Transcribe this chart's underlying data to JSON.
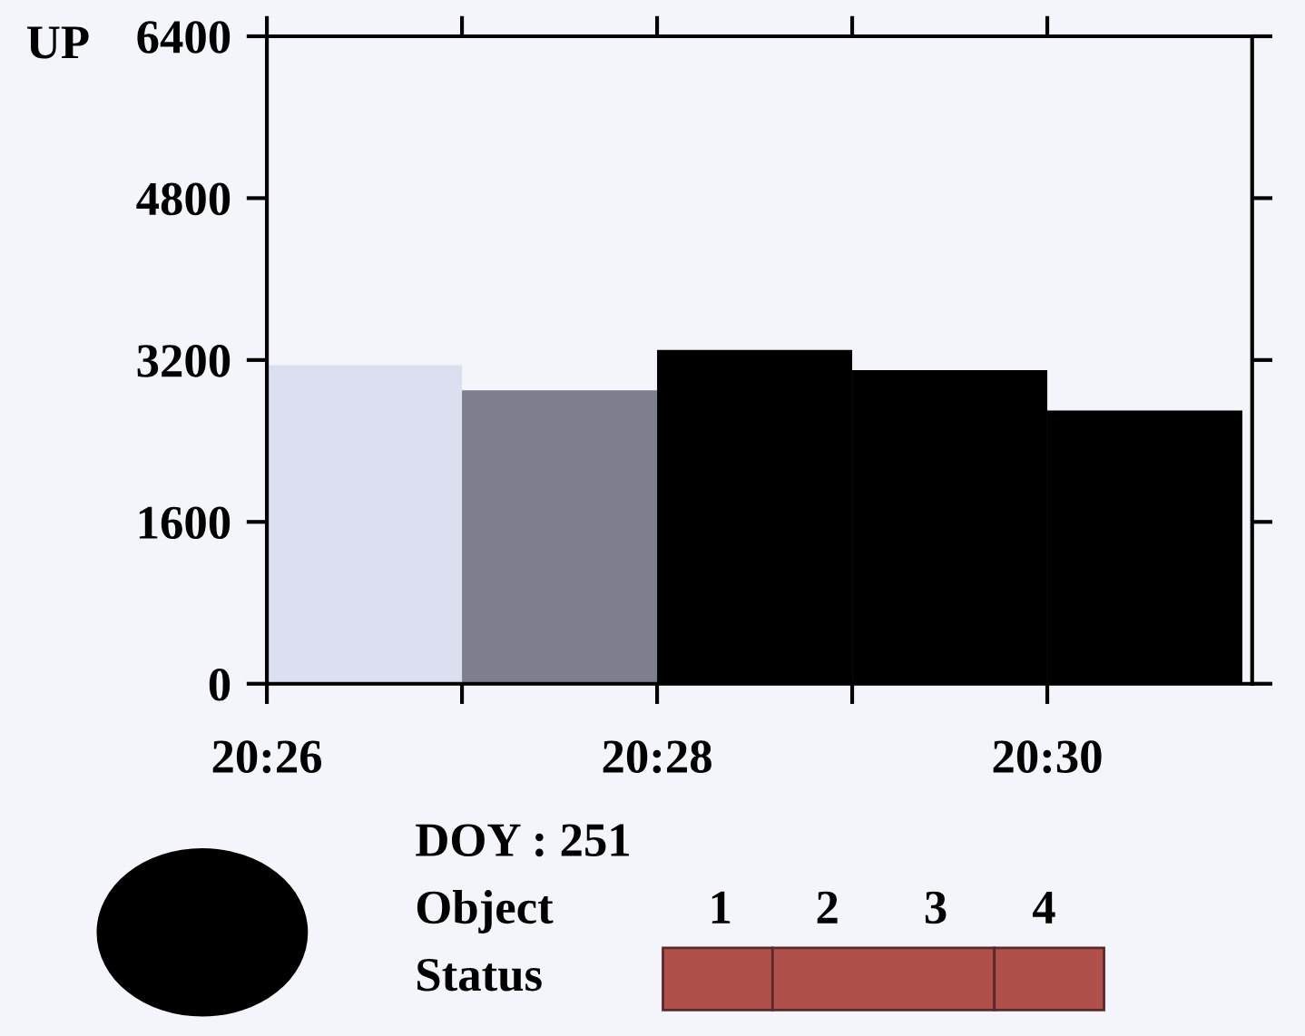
{
  "chart_data": {
    "type": "histogram",
    "ylabel": "UP",
    "bins": [
      20.433333,
      20.45,
      20.466667,
      20.483333,
      20.5,
      20.516667
    ],
    "values": [
      3150,
      2900,
      3300,
      3100,
      2700
    ],
    "colors": [
      "#dcdff0",
      "#7d7f8f",
      "#000000",
      "#000000",
      "#000000"
    ],
    "xlim": [
      20.433333,
      20.5175
    ],
    "xticks": [
      {
        "value": 20.433333,
        "label": "20:26"
      },
      {
        "value": 20.45,
        "label": null
      },
      {
        "value": 20.466667,
        "label": "20:28"
      },
      {
        "value": 20.483333,
        "label": null
      },
      {
        "value": 20.5,
        "label": "20:30"
      }
    ],
    "ylim": [
      0,
      6400
    ],
    "yticks": [
      0,
      1600,
      3200,
      4800,
      6400
    ],
    "grid": false,
    "legend": false,
    "annotations": [
      "DOY : 251",
      "Object",
      "1",
      "2",
      "3",
      "4",
      "Status"
    ]
  }
}
